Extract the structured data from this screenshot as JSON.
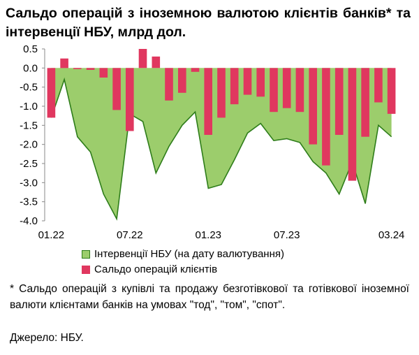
{
  "title": "Сальдо операцій з іноземною валютою клієнтів банків* та інтервенції НБУ, млрд дол.",
  "legend": {
    "intervention": "Інтервенції НБУ (на дату валютування)",
    "clients": "Сальдо операцій клієнтів"
  },
  "note": "* Сальдо операцій з купівлі та продажу безготівкової та готівкової іноземної валюти клієнтами банків на умовах \"тод\", \"том\", \"спот\".",
  "source": "Джерело: НБУ.",
  "colors": {
    "area_fill": "#9ccd6c",
    "area_line": "#2e7d1a",
    "bars": "#e0375f"
  },
  "chart_data": {
    "type": "bar",
    "categories": [
      "01.22",
      "02.22",
      "03.22",
      "04.22",
      "05.22",
      "06.22",
      "07.22",
      "08.22",
      "09.22",
      "10.22",
      "11.22",
      "12.22",
      "01.23",
      "02.23",
      "03.23",
      "04.23",
      "05.23",
      "06.23",
      "07.23",
      "08.23",
      "09.23",
      "10.23",
      "11.23",
      "12.23",
      "01.24",
      "02.24",
      "03.24"
    ],
    "x_tick_labels": [
      "01.22",
      "07.22",
      "01.23",
      "07.23",
      "03.24"
    ],
    "series": [
      {
        "name": "Інтервенції НБУ (на дату валютування)",
        "kind": "area",
        "values": [
          -1.3,
          -0.3,
          -1.8,
          -2.2,
          -3.3,
          -3.95,
          -1.2,
          -1.4,
          -2.75,
          -2.05,
          -1.5,
          -1.15,
          -3.15,
          -3.05,
          -2.4,
          -1.7,
          -1.45,
          -1.9,
          -1.85,
          -1.95,
          -2.45,
          -2.75,
          -3.3,
          -2.45,
          -3.55,
          -1.5,
          -1.8
        ]
      },
      {
        "name": "Сальдо операцій клієнтів",
        "kind": "bar",
        "values": [
          -1.3,
          0.25,
          -0.03,
          -0.05,
          -0.25,
          -1.1,
          -1.65,
          0.5,
          0.3,
          -0.85,
          -0.65,
          -0.1,
          -1.75,
          -1.3,
          -0.95,
          -0.7,
          -0.75,
          -1.15,
          -1.05,
          -1.15,
          -2.0,
          -2.55,
          -1.75,
          -2.95,
          -1.8,
          -0.9,
          -1.2
        ]
      }
    ],
    "ylim": [
      -4.0,
      0.5
    ],
    "yticks": [
      "0.5",
      "0.0",
      "-0.5",
      "-1.0",
      "-1.5",
      "-2.0",
      "-2.5",
      "-3.0",
      "-3.5",
      "-4.0"
    ],
    "grid": false,
    "legend_position": "bottom"
  }
}
